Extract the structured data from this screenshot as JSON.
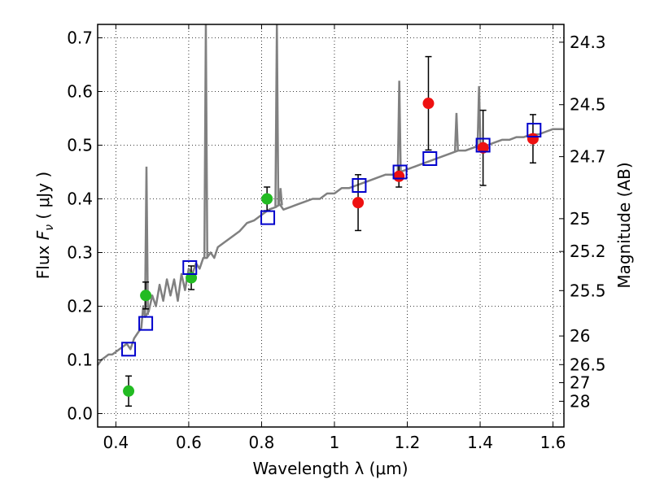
{
  "chart_data": {
    "type": "scatter",
    "xlabel": "Wavelength  λ (μm)",
    "ylabel": "Flux  F_ν  ( μJy )",
    "ylabel_parts": {
      "pre": "Flux ",
      "sym": "F",
      "sub": "ν",
      "post": "  ( μJy )"
    },
    "ylabel_right": "Magnitude (AB)",
    "xlim": [
      0.35,
      1.63
    ],
    "ylim": [
      -0.025,
      0.725
    ],
    "grid": true,
    "x_ticks": [
      {
        "value": 0.4,
        "label": "0.4"
      },
      {
        "value": 0.6,
        "label": "0.6"
      },
      {
        "value": 0.8,
        "label": "0.8"
      },
      {
        "value": 1.0,
        "label": "1"
      },
      {
        "value": 1.2,
        "label": "1.2"
      },
      {
        "value": 1.4,
        "label": "1.4"
      },
      {
        "value": 1.6,
        "label": "1.6"
      }
    ],
    "y_ticks": [
      {
        "value": 0.0,
        "label": "0.0"
      },
      {
        "value": 0.1,
        "label": "0.1"
      },
      {
        "value": 0.2,
        "label": "0.2"
      },
      {
        "value": 0.3,
        "label": "0.3"
      },
      {
        "value": 0.4,
        "label": "0.4"
      },
      {
        "value": 0.5,
        "label": "0.5"
      },
      {
        "value": 0.6,
        "label": "0.6"
      },
      {
        "value": 0.7,
        "label": "0.7"
      }
    ],
    "mag_ticks": [
      {
        "mag": 24.3,
        "label": "24.3"
      },
      {
        "mag": 24.5,
        "label": "24.5"
      },
      {
        "mag": 24.7,
        "label": "24.7"
      },
      {
        "mag": 25.0,
        "label": "25"
      },
      {
        "mag": 25.2,
        "label": "25.2"
      },
      {
        "mag": 25.5,
        "label": "25.5"
      },
      {
        "mag": 26.0,
        "label": "26"
      },
      {
        "mag": 26.5,
        "label": "26.5"
      },
      {
        "mag": 27.0,
        "label": "27"
      },
      {
        "mag": 28.0,
        "label": "28"
      }
    ],
    "colors": {
      "green": "#22bb22",
      "red": "#ee1111",
      "blue": "#0000cc",
      "model": "#808080"
    },
    "series": [
      {
        "name": "model spectrum",
        "kind": "line",
        "x": [
          0.35,
          0.36,
          0.37,
          0.38,
          0.39,
          0.4,
          0.41,
          0.42,
          0.43,
          0.44,
          0.45,
          0.46,
          0.47,
          0.475,
          0.48,
          0.49,
          0.5,
          0.51,
          0.52,
          0.53,
          0.54,
          0.55,
          0.56,
          0.57,
          0.58,
          0.59,
          0.6,
          0.61,
          0.62,
          0.63,
          0.64,
          0.65,
          0.66,
          0.67,
          0.68,
          0.7,
          0.72,
          0.74,
          0.76,
          0.78,
          0.8,
          0.82,
          0.84,
          0.85,
          0.86,
          0.88,
          0.9,
          0.92,
          0.94,
          0.96,
          0.98,
          1.0,
          1.02,
          1.04,
          1.06,
          1.08,
          1.1,
          1.12,
          1.14,
          1.16,
          1.18,
          1.2,
          1.22,
          1.24,
          1.26,
          1.28,
          1.3,
          1.32,
          1.34,
          1.36,
          1.38,
          1.4,
          1.42,
          1.44,
          1.46,
          1.48,
          1.5,
          1.52,
          1.54,
          1.56,
          1.58,
          1.6,
          1.62,
          1.63
        ],
        "y": [
          0.09,
          0.1,
          0.105,
          0.11,
          0.11,
          0.115,
          0.12,
          0.125,
          0.13,
          0.12,
          0.14,
          0.15,
          0.16,
          0.2,
          0.18,
          0.19,
          0.22,
          0.2,
          0.24,
          0.21,
          0.25,
          0.22,
          0.25,
          0.21,
          0.26,
          0.23,
          0.27,
          0.26,
          0.28,
          0.27,
          0.29,
          0.29,
          0.3,
          0.29,
          0.31,
          0.32,
          0.33,
          0.34,
          0.355,
          0.36,
          0.37,
          0.38,
          0.385,
          0.39,
          0.38,
          0.385,
          0.39,
          0.395,
          0.4,
          0.4,
          0.41,
          0.41,
          0.42,
          0.42,
          0.425,
          0.43,
          0.435,
          0.44,
          0.445,
          0.445,
          0.45,
          0.455,
          0.46,
          0.465,
          0.47,
          0.475,
          0.48,
          0.485,
          0.49,
          0.49,
          0.495,
          0.5,
          0.5,
          0.505,
          0.51,
          0.51,
          0.515,
          0.515,
          0.52,
          0.52,
          0.525,
          0.53,
          0.53,
          0.53
        ]
      },
      {
        "name": "model emission lines",
        "kind": "spikes",
        "x": [
          0.484,
          0.647,
          0.842,
          0.852,
          1.178,
          1.335,
          1.397
        ],
        "peak": [
          0.46,
          0.73,
          0.73,
          0.42,
          0.62,
          0.56,
          0.61
        ]
      },
      {
        "name": "green points",
        "kind": "points",
        "marker": "circle",
        "x": [
          0.435,
          0.482,
          0.607,
          0.815
        ],
        "y": [
          0.042,
          0.22,
          0.253,
          0.4
        ],
        "err": [
          0.028,
          0.025,
          0.022,
          0.022
        ]
      },
      {
        "name": "red points",
        "kind": "points",
        "marker": "circle",
        "x": [
          1.065,
          1.177,
          1.258,
          1.408,
          1.545
        ],
        "y": [
          0.393,
          0.442,
          0.578,
          0.495,
          0.512
        ],
        "err": [
          0.052,
          0.02,
          0.087,
          0.07,
          0.045
        ]
      },
      {
        "name": "model photometry",
        "kind": "points",
        "marker": "square",
        "x": [
          0.435,
          0.482,
          0.603,
          0.817,
          1.068,
          1.18,
          1.262,
          1.408,
          1.548
        ],
        "y": [
          0.12,
          0.168,
          0.272,
          0.365,
          0.425,
          0.45,
          0.475,
          0.5,
          0.528
        ]
      }
    ]
  }
}
